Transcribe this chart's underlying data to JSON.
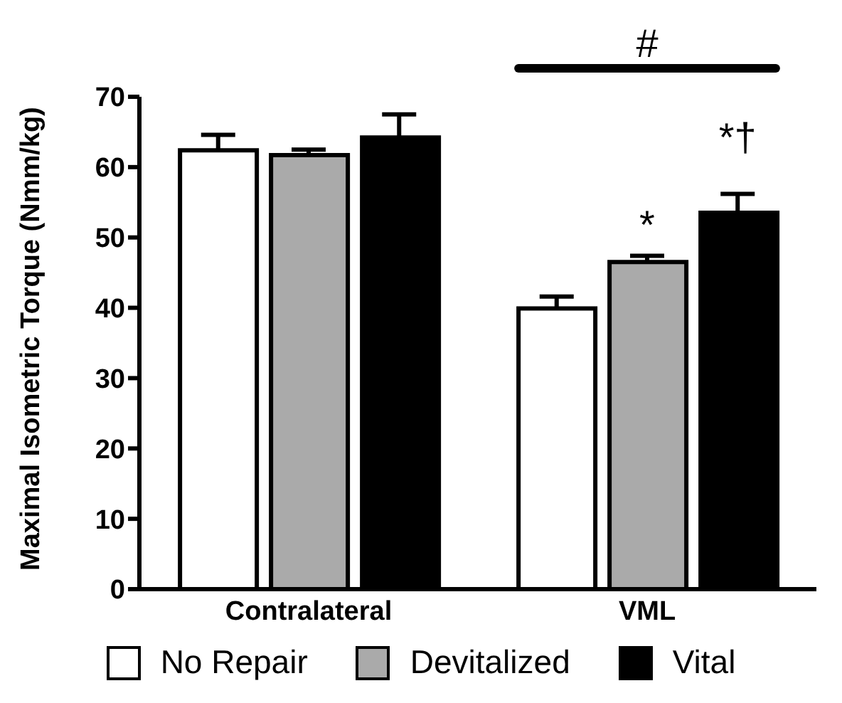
{
  "chart_data": {
    "type": "bar",
    "ylabel": "Maximal Isometric Torque (Nmm/kg)",
    "categories": [
      "Contralateral",
      "VML"
    ],
    "series": [
      {
        "name": "No Repair",
        "color": "#ffffff",
        "values": [
          62.4,
          39.9
        ],
        "errors": [
          2.2,
          1.7
        ]
      },
      {
        "name": "Devitalized",
        "color": "#aaaaaa",
        "values": [
          61.7,
          46.5
        ],
        "errors": [
          0.8,
          0.9
        ]
      },
      {
        "name": "Vital",
        "color": "#000000",
        "values": [
          64.2,
          53.5
        ],
        "errors": [
          3.3,
          2.7
        ]
      }
    ],
    "ylim": [
      0,
      70
    ],
    "yticks": [
      0,
      10,
      20,
      30,
      40,
      50,
      60,
      70
    ],
    "legend": "bottom",
    "annotations": [
      "#",
      "*",
      "*†"
    ]
  }
}
